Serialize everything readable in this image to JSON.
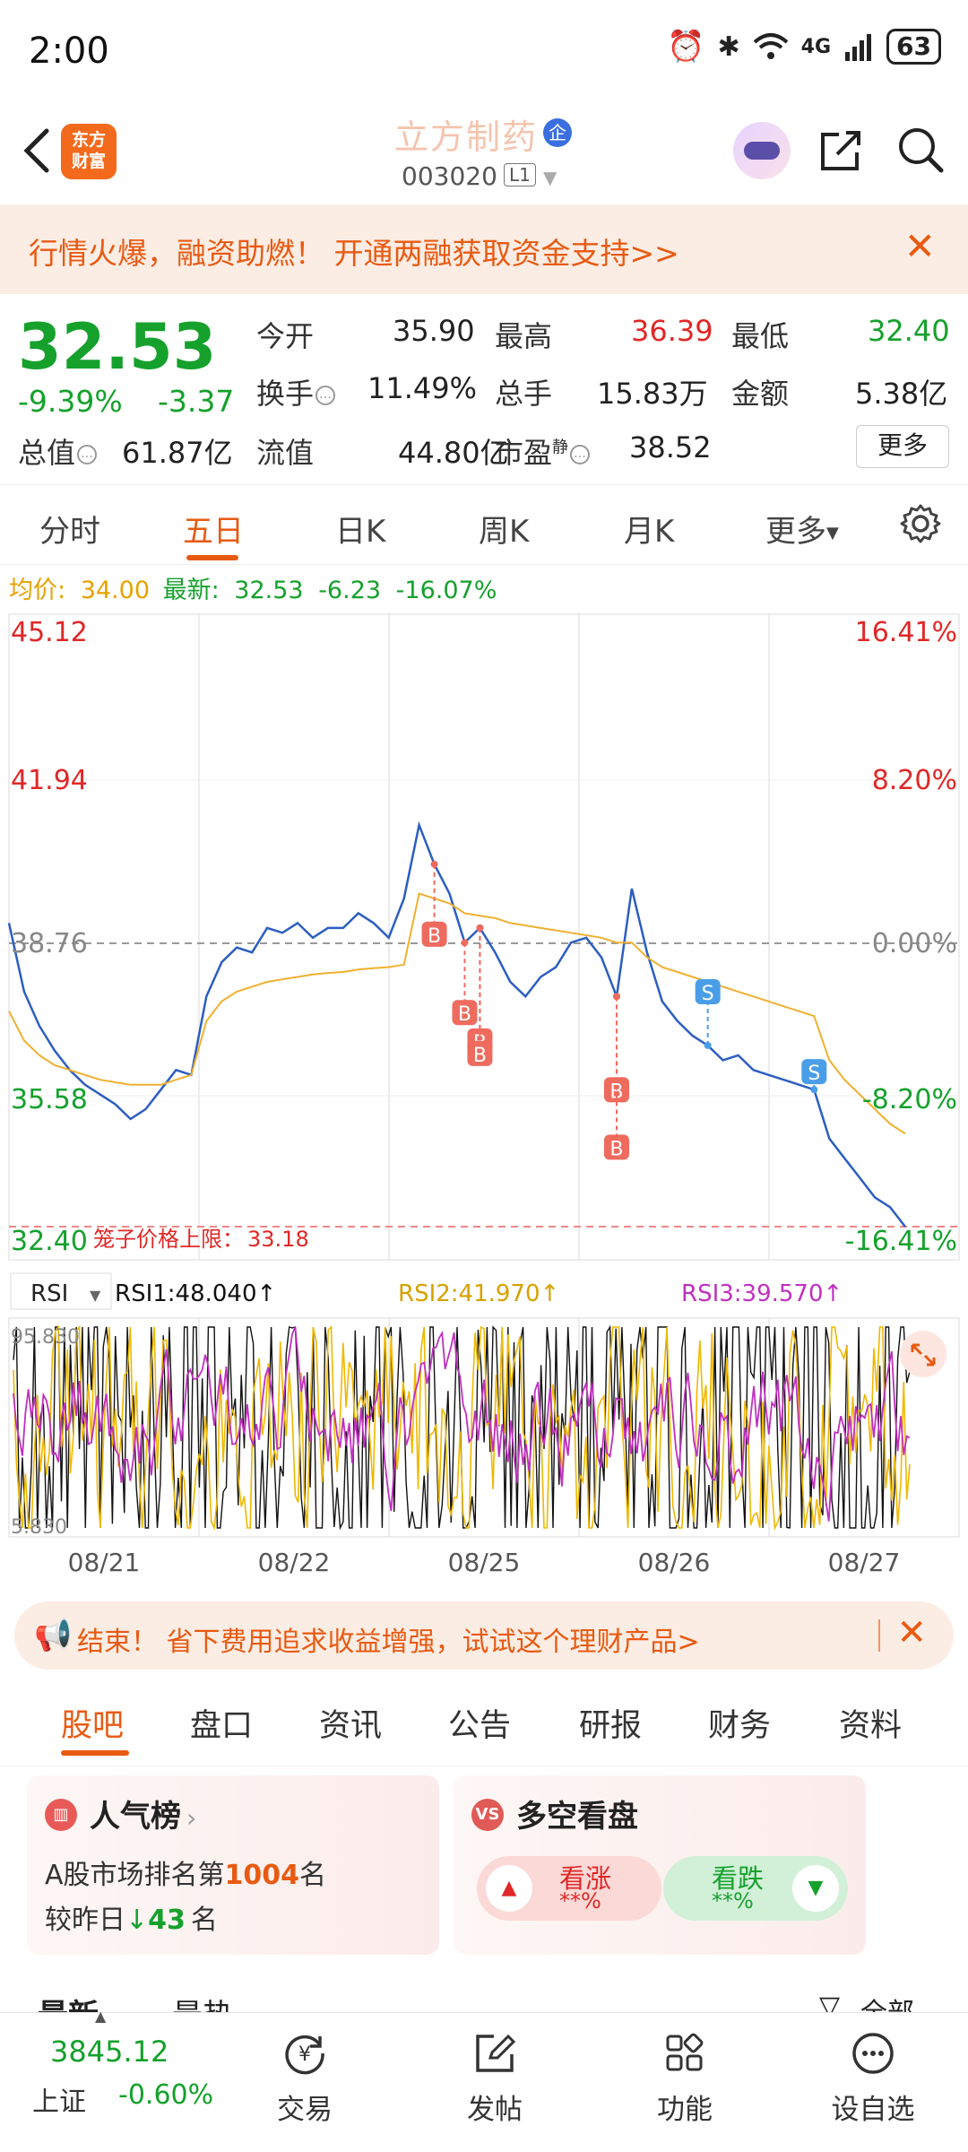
{
  "status_bar": {
    "time": "2:00",
    "battery": "63",
    "network": "4G",
    "icons": [
      "alarm-icon",
      "bluetooth-icon",
      "wifi-icon",
      "signal-icon"
    ]
  },
  "header": {
    "back_icon": "chevron-left-icon",
    "logo_text": "东方\n财富",
    "stock_name": "立方制药",
    "badge": "企",
    "stock_code": "003020",
    "level": "L1"
  },
  "banner": {
    "text": "行情火爆，融资助燃！ 开通两融获取资金支持>>"
  },
  "quote": {
    "price": "32.53",
    "change_pct": "-9.39%",
    "change": "-3.37",
    "fields": [
      {
        "label": "今开",
        "value": "35.90",
        "color": "#222222"
      },
      {
        "label": "最高",
        "value": "36.39",
        "color": "#e02727"
      },
      {
        "label": "最低",
        "value": "32.40",
        "color": "#15a12c"
      },
      {
        "label": "换手",
        "value": "11.49%",
        "color": "#222222"
      },
      {
        "label": "总手",
        "value": "15.83万",
        "color": "#222222"
      },
      {
        "label": "金额",
        "value": "5.38亿",
        "color": "#222222"
      },
      {
        "label": "流值",
        "value": "44.80亿",
        "color": "#222222"
      },
      {
        "label": "市盈",
        "value": "38.52",
        "color": "#222222"
      }
    ],
    "total_label": "总值",
    "total_value": "61.87亿",
    "pe_superscript": "静",
    "more_label": "更多"
  },
  "tabs": {
    "items": [
      "分时",
      "五日",
      "日K",
      "周K",
      "月K",
      "更多"
    ],
    "active": "五日"
  },
  "avg_line": {
    "avg_label": "均价:",
    "avg_value": "34.00",
    "latest_label": "最新:",
    "latest_value": "32.53",
    "latest_change": "-6.23",
    "latest_pct": "-16.07%"
  },
  "chart_data": {
    "type": "line",
    "price_axis": {
      "ticks": [
        "45.12",
        "41.94",
        "38.76",
        "35.58",
        "32.40"
      ],
      "ylim": [
        32.4,
        45.12
      ],
      "baseline": 38.76
    },
    "pct_axis": {
      "ticks": [
        "16.41%",
        "8.20%",
        "0.00%",
        "-8.20%",
        "-16.41%"
      ]
    },
    "limit_label": "笼子价格上限：",
    "limit_value": "33.18",
    "x_labels": [
      "08/21",
      "08/22",
      "08/25",
      "08/26",
      "08/27"
    ],
    "series": [
      {
        "name": "price",
        "color": "#2c5ec2",
        "values": [
          39.0,
          37.6,
          36.9,
          36.4,
          36.0,
          35.7,
          35.5,
          35.3,
          35.0,
          35.2,
          35.6,
          36.0,
          35.9,
          37.5,
          38.2,
          38.5,
          38.4,
          38.9,
          38.8,
          39.0,
          38.7,
          38.9,
          38.9,
          39.2,
          39.0,
          38.7,
          39.5,
          41.0,
          40.2,
          39.6,
          38.6,
          38.9,
          38.4,
          37.8,
          37.5,
          37.9,
          38.1,
          38.6,
          38.7,
          38.3,
          37.5,
          39.7,
          38.4,
          37.4,
          37.0,
          36.7,
          36.5,
          36.2,
          36.3,
          36.0,
          35.9,
          35.8,
          35.7,
          35.6,
          34.6,
          34.2,
          33.8,
          33.4,
          33.2,
          32.8
        ]
      },
      {
        "name": "avg",
        "color": "#f0b030",
        "values": [
          37.2,
          36.6,
          36.3,
          36.1,
          36.0,
          35.9,
          35.8,
          35.75,
          35.7,
          35.7,
          35.7,
          35.8,
          35.9,
          37.0,
          37.4,
          37.6,
          37.7,
          37.8,
          37.85,
          37.9,
          37.95,
          37.98,
          38.0,
          38.05,
          38.08,
          38.1,
          38.15,
          39.6,
          39.5,
          39.4,
          39.2,
          39.15,
          39.1,
          39.0,
          38.95,
          38.9,
          38.85,
          38.8,
          38.75,
          38.7,
          38.6,
          38.6,
          38.3,
          38.1,
          38.0,
          37.9,
          37.8,
          37.7,
          37.6,
          37.5,
          37.4,
          37.3,
          37.2,
          37.1,
          36.2,
          35.8,
          35.5,
          35.2,
          34.9,
          34.7
        ]
      }
    ],
    "trade_markers": [
      "B",
      "B",
      "B",
      "B",
      "B",
      "B",
      "S",
      "S"
    ],
    "rsi": {
      "indicator_label": "RSI",
      "rsi1": "RSI1:48.040↑",
      "rsi2": "RSI2:41.970↑",
      "rsi3": "RSI3:39.570↑",
      "ylim": [
        5.83,
        95.83
      ],
      "top_label": "95.830",
      "bottom_label": "5.830",
      "colors": {
        "rsi1": "#111111",
        "rsi2": "#f0b800",
        "rsi3": "#c030c0"
      }
    }
  },
  "ad": {
    "text": "结束！ 省下费用追求收益增强，试试这个理财产品>"
  },
  "section_tabs": {
    "items": [
      "股吧",
      "盘口",
      "资讯",
      "公告",
      "研报",
      "财务",
      "资料"
    ],
    "active": "股吧"
  },
  "popularity_card": {
    "title": "人气榜",
    "line1_prefix": "A股市场排名第",
    "rank": "1004",
    "line1_suffix": "名",
    "line2_prefix": "较昨日",
    "delta": "43",
    "line2_suffix": "名"
  },
  "sentiment_card": {
    "title": "多空看盘",
    "up_label": "看涨",
    "up_value": "**%",
    "down_label": "看跌",
    "down_value": "**%"
  },
  "partial_row": {
    "left1": "最新",
    "left2": "最热",
    "right": "全部"
  },
  "bottom_nav": {
    "index_value": "3845.12",
    "index_name": "上证",
    "index_change": "-0.60%",
    "items": [
      {
        "label": "交易",
        "icon": "yen-refresh-icon"
      },
      {
        "label": "发帖",
        "icon": "edit-icon"
      },
      {
        "label": "功能",
        "icon": "grid-icon"
      },
      {
        "label": "设自选",
        "icon": "more-dots-icon"
      }
    ]
  }
}
